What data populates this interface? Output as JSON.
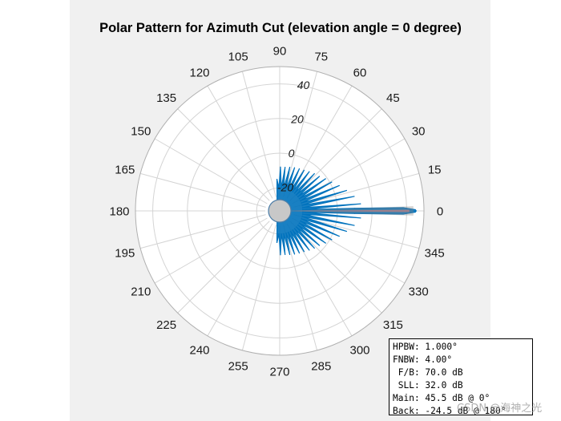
{
  "chart_data": {
    "type": "polar",
    "title": "Polar Pattern for Azimuth Cut (elevation angle = 0 degree)",
    "angle_ticks": [
      "0",
      "15",
      "30",
      "45",
      "60",
      "75",
      "90",
      "105",
      "120",
      "135",
      "150",
      "165",
      "180",
      "195",
      "210",
      "225",
      "240",
      "255",
      "270",
      "285",
      "300",
      "315",
      "330",
      "345"
    ],
    "radial_ticks": [
      "-20",
      "0",
      "20",
      "40"
    ],
    "rlim": [
      -25,
      50
    ],
    "grid": true,
    "series": [
      {
        "type": "pattern",
        "color": "#0072bd",
        "points": [
          {
            "az": -3,
            "db": -20
          },
          {
            "az": -2,
            "db": 10
          },
          {
            "az": -1.5,
            "db": 38
          },
          {
            "az": -0.5,
            "db": 45
          },
          {
            "az": 0,
            "db": 45.5
          },
          {
            "az": 0.5,
            "db": 45
          },
          {
            "az": 1.5,
            "db": 38
          },
          {
            "az": 2,
            "db": 10
          },
          {
            "az": 3,
            "db": -20
          },
          {
            "az": 5,
            "db": 13.5
          },
          {
            "az": 8,
            "db": -20
          },
          {
            "az": 11,
            "db": 10.5
          },
          {
            "az": 14,
            "db": -20
          },
          {
            "az": 17,
            "db": 7
          },
          {
            "az": 20,
            "db": -20
          },
          {
            "az": 23,
            "db": 4
          },
          {
            "az": 26,
            "db": -20
          },
          {
            "az": 29,
            "db": 1
          },
          {
            "az": 32,
            "db": -20
          },
          {
            "az": 35,
            "db": -1
          },
          {
            "az": 38,
            "db": -20
          },
          {
            "az": 41,
            "db": -3
          },
          {
            "az": 44,
            "db": -20
          },
          {
            "az": 47,
            "db": -4
          },
          {
            "az": 50,
            "db": -20
          },
          {
            "az": 53,
            "db": -5
          },
          {
            "az": 56,
            "db": -20
          },
          {
            "az": 59,
            "db": -6
          },
          {
            "az": 62,
            "db": -20
          },
          {
            "az": 65,
            "db": -6.5
          },
          {
            "az": 68,
            "db": -20
          },
          {
            "az": 71,
            "db": -7
          },
          {
            "az": 74,
            "db": -20
          },
          {
            "az": 77,
            "db": -7.5
          },
          {
            "az": 80,
            "db": -20
          },
          {
            "az": 83,
            "db": -8
          },
          {
            "az": 86,
            "db": -20
          },
          {
            "az": 89,
            "db": -8
          },
          {
            "az": 92,
            "db": -20
          },
          {
            "az": 95,
            "db": -15
          },
          {
            "az": 100,
            "db": -24.5
          },
          {
            "az": 260,
            "db": -24.5
          },
          {
            "az": 265,
            "db": -15
          },
          {
            "az": 268,
            "db": -20
          },
          {
            "az": 271,
            "db": -8
          },
          {
            "az": 274,
            "db": -20
          },
          {
            "az": 277,
            "db": -8
          },
          {
            "az": 280,
            "db": -20
          },
          {
            "az": 283,
            "db": -7.5
          },
          {
            "az": 286,
            "db": -20
          },
          {
            "az": 289,
            "db": -7
          },
          {
            "az": 292,
            "db": -20
          },
          {
            "az": 295,
            "db": -6.5
          },
          {
            "az": 298,
            "db": -20
          },
          {
            "az": 301,
            "db": -6
          },
          {
            "az": 304,
            "db": -20
          },
          {
            "az": 307,
            "db": -5
          },
          {
            "az": 310,
            "db": -20
          },
          {
            "az": 313,
            "db": -4
          },
          {
            "az": 316,
            "db": -20
          },
          {
            "az": 319,
            "db": -3
          },
          {
            "az": 322,
            "db": -20
          },
          {
            "az": 325,
            "db": -1
          },
          {
            "az": 328,
            "db": -20
          },
          {
            "az": 331,
            "db": 1
          },
          {
            "az": 334,
            "db": -20
          },
          {
            "az": 337,
            "db": 4
          },
          {
            "az": 340,
            "db": -20
          },
          {
            "az": 343,
            "db": 7
          },
          {
            "az": 346,
            "db": -20
          },
          {
            "az": 349,
            "db": 10.5
          },
          {
            "az": 352,
            "db": -20
          },
          {
            "az": 355,
            "db": 13.5
          },
          {
            "az": 357,
            "db": -20
          }
        ]
      }
    ],
    "annotations": [
      {
        "type": "hpbw",
        "az_from": -0.5,
        "az_to": 0.5,
        "color": "#f08080"
      },
      {
        "type": "fnbw",
        "az_from": -2,
        "az_to": 2,
        "color": "#808080"
      }
    ]
  },
  "stats_box": {
    "lines": [
      "HPBW: 1.000°",
      "FNBW: 4.00°",
      " F/B: 70.0 dB",
      " SLL: 32.0 dB",
      "Main: 45.5 dB @ 0°",
      "Back: -24.5 dB @ 180°"
    ]
  },
  "watermark": "CSDN @海神之光"
}
